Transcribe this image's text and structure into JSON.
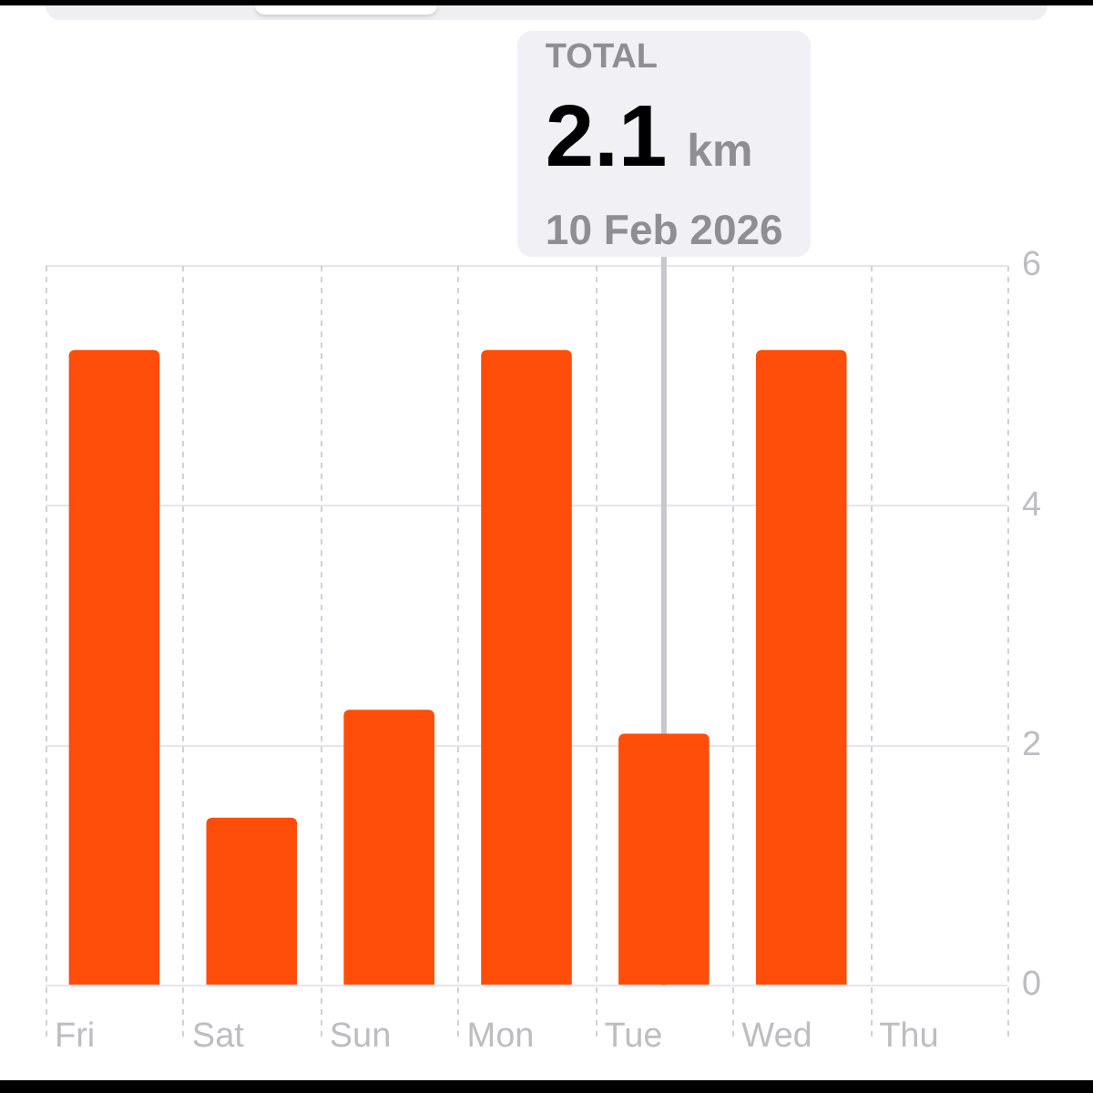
{
  "chart_data": {
    "type": "bar",
    "categories": [
      "Fri",
      "Sat",
      "Sun",
      "Mon",
      "Tue",
      "Wed",
      "Thu"
    ],
    "values": [
      5.3,
      1.4,
      2.3,
      5.3,
      2.1,
      5.3,
      0
    ],
    "color": "#ff4d0a",
    "ylim": [
      0,
      6
    ],
    "yticks": [
      0,
      2,
      4,
      6
    ],
    "grid": true,
    "ref_lines": [
      {
        "axis": "x",
        "value": "Tue",
        "label": "TOTAL\n2.1 km\n10 Feb 2026",
        "color": "#c7c7cc"
      }
    ]
  }
}
